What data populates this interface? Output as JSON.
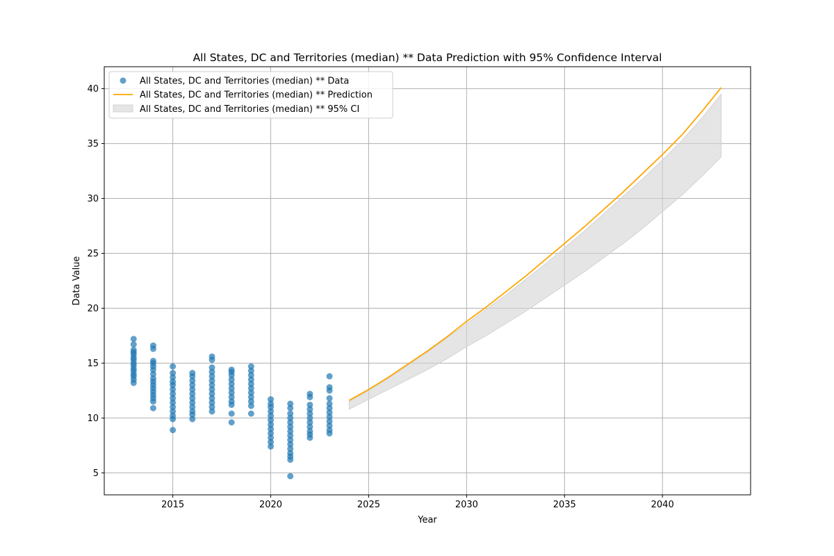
{
  "chart_data": {
    "type": "scatter",
    "title": "All States, DC and Territories (median) ** Data Prediction with 95% Confidence Interval",
    "xlabel": "Year",
    "ylabel": "Data Value",
    "xlim": [
      2011.5,
      2044.5
    ],
    "ylim": [
      3.0,
      42.0
    ],
    "xticks": [
      2015,
      2020,
      2025,
      2030,
      2035,
      2040
    ],
    "yticks": [
      5,
      10,
      15,
      20,
      25,
      30,
      35,
      40
    ],
    "grid": true,
    "legend_position": "top-left",
    "colors": {
      "data": "#1f77b4",
      "prediction": "#ffa500",
      "ci": "#d3d3d3"
    },
    "series": [
      {
        "name": "All States, DC and Territories (median) ** Data",
        "kind": "scatter",
        "points": [
          [
            2013,
            17.2
          ],
          [
            2013,
            16.7
          ],
          [
            2013,
            16.2
          ],
          [
            2013,
            16.0
          ],
          [
            2013,
            15.8
          ],
          [
            2013,
            15.5
          ],
          [
            2013,
            15.3
          ],
          [
            2013,
            15.0
          ],
          [
            2013,
            14.8
          ],
          [
            2013,
            14.5
          ],
          [
            2013,
            14.3
          ],
          [
            2013,
            14.0
          ],
          [
            2013,
            13.8
          ],
          [
            2013,
            13.5
          ],
          [
            2013,
            13.2
          ],
          [
            2014,
            16.6
          ],
          [
            2014,
            16.3
          ],
          [
            2014,
            15.2
          ],
          [
            2014,
            15.0
          ],
          [
            2014,
            14.7
          ],
          [
            2014,
            14.4
          ],
          [
            2014,
            14.0
          ],
          [
            2014,
            13.6
          ],
          [
            2014,
            13.3
          ],
          [
            2014,
            13.0
          ],
          [
            2014,
            12.7
          ],
          [
            2014,
            12.4
          ],
          [
            2014,
            12.1
          ],
          [
            2014,
            11.8
          ],
          [
            2014,
            11.5
          ],
          [
            2014,
            10.9
          ],
          [
            2015,
            14.7
          ],
          [
            2015,
            14.1
          ],
          [
            2015,
            13.7
          ],
          [
            2015,
            13.3
          ],
          [
            2015,
            13.0
          ],
          [
            2015,
            12.6
          ],
          [
            2015,
            12.2
          ],
          [
            2015,
            11.8
          ],
          [
            2015,
            11.4
          ],
          [
            2015,
            11.0
          ],
          [
            2015,
            10.6
          ],
          [
            2015,
            10.2
          ],
          [
            2015,
            9.9
          ],
          [
            2015,
            8.9
          ],
          [
            2016,
            14.1
          ],
          [
            2016,
            13.8
          ],
          [
            2016,
            13.4
          ],
          [
            2016,
            13.0
          ],
          [
            2016,
            12.6
          ],
          [
            2016,
            12.2
          ],
          [
            2016,
            11.8
          ],
          [
            2016,
            11.4
          ],
          [
            2016,
            11.0
          ],
          [
            2016,
            10.6
          ],
          [
            2016,
            10.3
          ],
          [
            2016,
            9.9
          ],
          [
            2017,
            15.6
          ],
          [
            2017,
            15.3
          ],
          [
            2017,
            14.6
          ],
          [
            2017,
            14.2
          ],
          [
            2017,
            13.8
          ],
          [
            2017,
            13.4
          ],
          [
            2017,
            13.0
          ],
          [
            2017,
            12.6
          ],
          [
            2017,
            12.2
          ],
          [
            2017,
            11.8
          ],
          [
            2017,
            11.4
          ],
          [
            2017,
            11.0
          ],
          [
            2017,
            10.6
          ],
          [
            2018,
            14.4
          ],
          [
            2018,
            14.2
          ],
          [
            2018,
            13.9
          ],
          [
            2018,
            13.5
          ],
          [
            2018,
            13.1
          ],
          [
            2018,
            12.7
          ],
          [
            2018,
            12.3
          ],
          [
            2018,
            11.9
          ],
          [
            2018,
            11.5
          ],
          [
            2018,
            11.2
          ],
          [
            2018,
            10.4
          ],
          [
            2018,
            9.6
          ],
          [
            2019,
            14.7
          ],
          [
            2019,
            14.3
          ],
          [
            2019,
            13.9
          ],
          [
            2019,
            13.5
          ],
          [
            2019,
            13.1
          ],
          [
            2019,
            12.7
          ],
          [
            2019,
            12.3
          ],
          [
            2019,
            11.9
          ],
          [
            2019,
            11.5
          ],
          [
            2019,
            11.1
          ],
          [
            2019,
            10.4
          ],
          [
            2020,
            11.7
          ],
          [
            2020,
            11.3
          ],
          [
            2020,
            11.0
          ],
          [
            2020,
            10.6
          ],
          [
            2020,
            10.2
          ],
          [
            2020,
            9.8
          ],
          [
            2020,
            9.4
          ],
          [
            2020,
            9.0
          ],
          [
            2020,
            8.6
          ],
          [
            2020,
            8.2
          ],
          [
            2020,
            7.8
          ],
          [
            2020,
            7.4
          ],
          [
            2021,
            11.3
          ],
          [
            2021,
            10.9
          ],
          [
            2021,
            10.4
          ],
          [
            2021,
            10.0
          ],
          [
            2021,
            9.6
          ],
          [
            2021,
            9.2
          ],
          [
            2021,
            8.8
          ],
          [
            2021,
            8.4
          ],
          [
            2021,
            8.0
          ],
          [
            2021,
            7.6
          ],
          [
            2021,
            7.2
          ],
          [
            2021,
            6.8
          ],
          [
            2021,
            6.5
          ],
          [
            2021,
            6.2
          ],
          [
            2021,
            4.7
          ],
          [
            2022,
            12.2
          ],
          [
            2022,
            11.9
          ],
          [
            2022,
            11.2
          ],
          [
            2022,
            10.8
          ],
          [
            2022,
            10.4
          ],
          [
            2022,
            10.0
          ],
          [
            2022,
            9.6
          ],
          [
            2022,
            9.2
          ],
          [
            2022,
            8.8
          ],
          [
            2022,
            8.5
          ],
          [
            2022,
            8.2
          ],
          [
            2023,
            13.8
          ],
          [
            2023,
            12.8
          ],
          [
            2023,
            12.5
          ],
          [
            2023,
            11.8
          ],
          [
            2023,
            11.3
          ],
          [
            2023,
            10.9
          ],
          [
            2023,
            10.5
          ],
          [
            2023,
            10.1
          ],
          [
            2023,
            9.7
          ],
          [
            2023,
            9.3
          ],
          [
            2023,
            8.9
          ],
          [
            2023,
            8.6
          ]
        ]
      },
      {
        "name": "All States, DC and Territories (median) ** Prediction",
        "kind": "line",
        "x": [
          2024,
          2025,
          2026,
          2027,
          2028,
          2029,
          2030,
          2031,
          2032,
          2033,
          2034,
          2035,
          2036,
          2037,
          2038,
          2039,
          2040,
          2041,
          2042,
          2043
        ],
        "y": [
          11.6,
          12.6,
          13.7,
          14.9,
          16.1,
          17.4,
          18.8,
          20.1,
          21.5,
          22.9,
          24.4,
          25.9,
          27.4,
          29.0,
          30.6,
          32.3,
          34.0,
          35.8,
          37.9,
          40.1
        ]
      },
      {
        "name": "All States, DC and Territories (median) ** 95% CI",
        "kind": "band",
        "x": [
          2024,
          2025,
          2026,
          2027,
          2028,
          2029,
          2030,
          2031,
          2032,
          2033,
          2034,
          2035,
          2036,
          2037,
          2038,
          2039,
          2040,
          2041,
          2042,
          2043
        ],
        "lower": [
          10.8,
          11.7,
          12.6,
          13.5,
          14.4,
          15.4,
          16.5,
          17.5,
          18.6,
          19.7,
          20.9,
          22.1,
          23.3,
          24.6,
          25.9,
          27.3,
          28.8,
          30.3,
          32.0,
          33.8
        ],
        "upper": [
          11.5,
          12.5,
          13.6,
          14.8,
          16.0,
          17.3,
          18.6,
          19.9,
          21.2,
          22.6,
          24.0,
          25.5,
          27.0,
          28.6,
          30.2,
          31.8,
          33.5,
          35.3,
          37.3,
          39.5
        ]
      }
    ]
  }
}
